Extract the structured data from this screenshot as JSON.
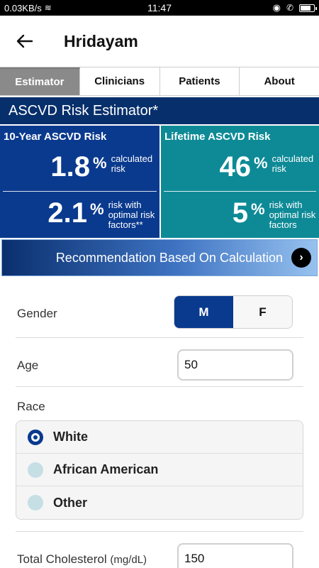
{
  "status_bar": {
    "speed": "0.03KB/s",
    "time": "11:47",
    "battery_level": 0.85
  },
  "app": {
    "title": "Hridayam"
  },
  "tabs": [
    {
      "label": "Estimator",
      "active": true
    },
    {
      "label": "Clinicians",
      "active": false
    },
    {
      "label": "Patients",
      "active": false
    },
    {
      "label": "About",
      "active": false
    }
  ],
  "estimator": {
    "header": "ASCVD Risk Estimator*",
    "ten_year": {
      "title": "10-Year ASCVD Risk",
      "calculated": {
        "value": "1.8",
        "unit": "%",
        "label_line1": "calculated",
        "label_line2": "risk"
      },
      "optimal": {
        "value": "2.1",
        "unit": "%",
        "label_line1": "risk with",
        "label_line2": "optimal risk",
        "label_line3": "factors**"
      }
    },
    "lifetime": {
      "title": "Lifetime ASCVD Risk",
      "calculated": {
        "value": "46",
        "unit": "%",
        "label_line1": "calculated",
        "label_line2": "risk"
      },
      "optimal": {
        "value": "5",
        "unit": "%",
        "label_line1": "risk with",
        "label_line2": "optimal risk",
        "label_line3": "factors"
      }
    },
    "recommendation": {
      "label": "Recommendation Based On Calculation",
      "arrow": "›"
    }
  },
  "form": {
    "gender": {
      "label": "Gender",
      "options": [
        "M",
        "F"
      ],
      "selected": "M"
    },
    "age": {
      "label": "Age",
      "value": "50"
    },
    "race": {
      "label": "Race",
      "options": [
        "White",
        "African American",
        "Other"
      ],
      "selected": "White"
    },
    "total_cholesterol": {
      "label": "Total Cholesterol",
      "unit": "(mg/dL)",
      "value": "150"
    }
  },
  "colors": {
    "primary": "#0a3a8e",
    "teal": "#0e8a96",
    "header": "#072f6b"
  }
}
